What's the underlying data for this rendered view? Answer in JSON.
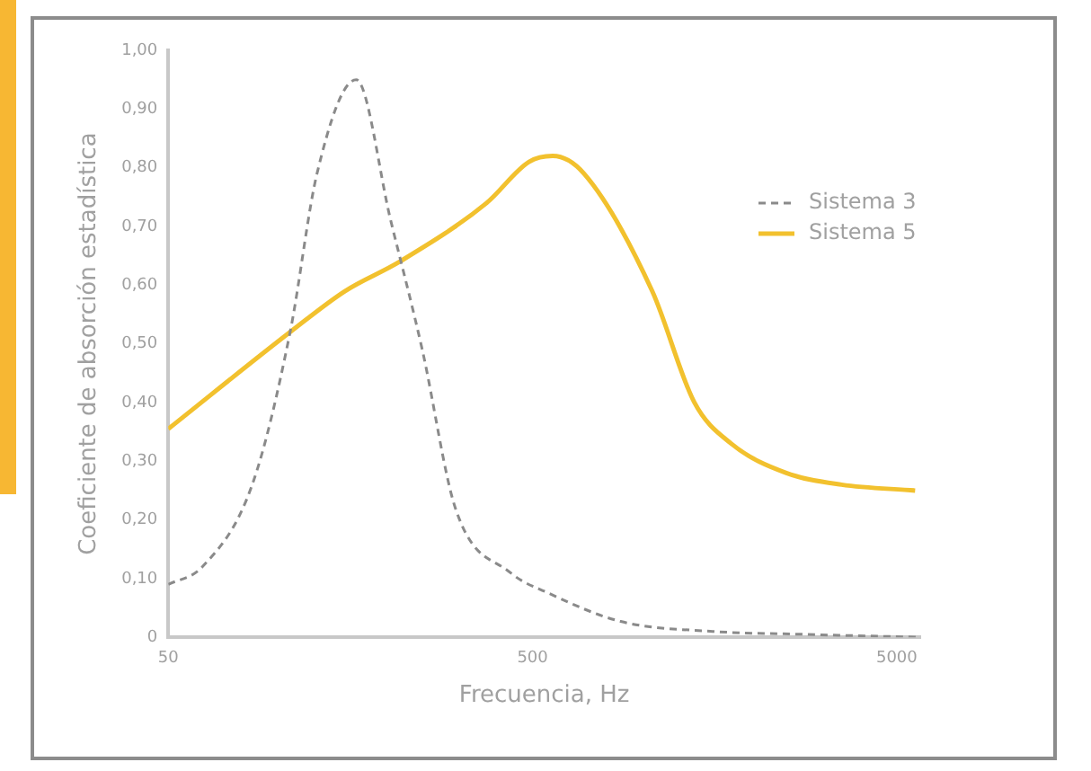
{
  "chart_data": {
    "type": "line",
    "xlabel": "Frecuencia, Hz",
    "ylabel": "Coeficiente de absorción estadística",
    "log": "x",
    "xlim": [
      50,
      5800
    ],
    "xticks": [
      50,
      500,
      5000
    ],
    "ylim": [
      0,
      1
    ],
    "yticks": [
      0,
      {
        "value": 0.1,
        "label": "0,10"
      },
      {
        "value": 0.2,
        "label": "0,20"
      },
      {
        "value": 0.3,
        "label": "0,30"
      },
      {
        "value": 0.4,
        "label": "0,40"
      },
      {
        "value": 0.5,
        "label": "0,50"
      },
      {
        "value": 0.6,
        "label": "0,60"
      },
      {
        "value": 0.7,
        "label": "0,70"
      },
      {
        "value": 0.8,
        "label": "0,80"
      },
      {
        "value": 0.9,
        "label": "0,90"
      },
      {
        "value": 1,
        "label": "1,00"
      }
    ],
    "grid": false,
    "legend": "top right",
    "marker": "none",
    "series": [
      {
        "name": "Sistema 3",
        "color": "#8a8a8a",
        "line_style": "dashed",
        "x": [
          50,
          62,
          85,
          108,
          128,
          164,
          204,
          249,
          307,
          435,
          550,
          873,
          1563,
          2795,
          5800
        ],
        "values": [
          0.09,
          0.12,
          0.26,
          0.52,
          0.79,
          0.95,
          0.71,
          0.49,
          0.22,
          0.11,
          0.076,
          0.027,
          0.01,
          0.005,
          0
        ]
      },
      {
        "name": "Sistema 5",
        "color": "#f2c12e",
        "line_style": "solid",
        "x": [
          50,
          108,
          153,
          216,
          374,
          489,
          568,
          692,
          1065,
          1391,
          1755,
          2488,
          3527,
          5615
        ],
        "values": [
          0.355,
          0.52,
          0.59,
          0.64,
          0.74,
          0.81,
          0.82,
          0.79,
          0.59,
          0.4,
          0.33,
          0.28,
          0.26,
          0.25
        ]
      }
    ]
  }
}
